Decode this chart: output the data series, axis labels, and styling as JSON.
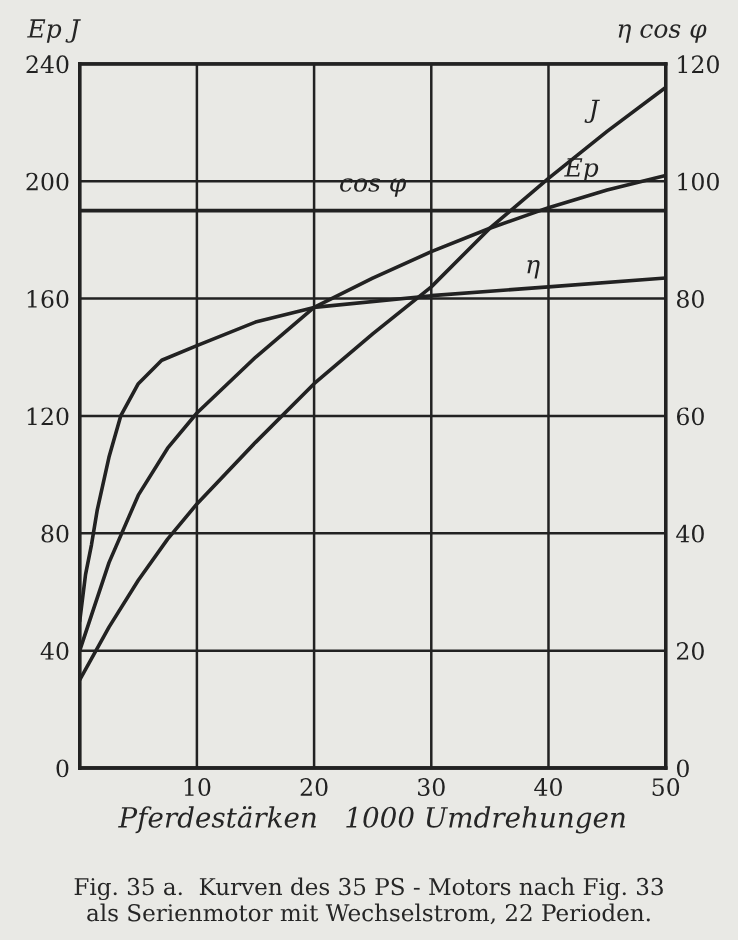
{
  "chart_data": {
    "type": "line",
    "xlabel": "Pferdestärken   1000 Umdrehungen",
    "ylabel": "Ep J",
    "y2label": "η cos φ",
    "annotations": [
      "Fig. 35 a.  Kurven des 35 PS - Motors nach Fig. 33\nals Serienmotor mit Wechselstrom, 22 Perioden."
    ],
    "xlim": [
      0,
      50
    ],
    "xticks": [
      {
        "value": 0,
        "label": null
      },
      10,
      20,
      30,
      40,
      50
    ],
    "ylim": [
      0,
      240
    ],
    "yticks": [
      0,
      40,
      80,
      120,
      160,
      200,
      240
    ],
    "y2lim": [
      0,
      120
    ],
    "y2ticks": [
      0,
      20,
      40,
      60,
      80,
      100,
      120
    ],
    "grid": true,
    "legend": false,
    "marker": "none",
    "line_style": "solid",
    "series": [
      {
        "name": "J",
        "color": "#222222",
        "x": [
          0,
          2.5,
          5,
          7.5,
          10,
          15,
          20,
          25,
          30,
          35,
          40,
          45,
          50
        ],
        "values": [
          30,
          48,
          64,
          78,
          90,
          111,
          131,
          148,
          164,
          184,
          201,
          217,
          232
        ]
      },
      {
        "name": "Ep",
        "color": "#222222",
        "x": [
          0,
          1,
          2.5,
          5,
          7.5,
          10,
          15,
          20,
          25,
          30,
          35,
          40,
          45,
          50
        ],
        "values": [
          40,
          52,
          70,
          93,
          109,
          121,
          140,
          157,
          167,
          176,
          184,
          191,
          197,
          202
        ]
      },
      {
        "name": "cos φ",
        "color": "#222222",
        "axis": "y2",
        "x": [
          0,
          50
        ],
        "values": [
          95,
          95
        ]
      },
      {
        "name": "η",
        "color": "#222222",
        "axis": "y2",
        "x": [
          0,
          0.5,
          1,
          1.5,
          2.5,
          3.5,
          5,
          7,
          10,
          15,
          20,
          30,
          40,
          50
        ],
        "values": [
          25,
          33,
          38,
          44,
          53,
          60,
          65.5,
          69.5,
          72,
          76,
          78.5,
          80.5,
          82,
          83.5
        ]
      }
    ]
  }
}
